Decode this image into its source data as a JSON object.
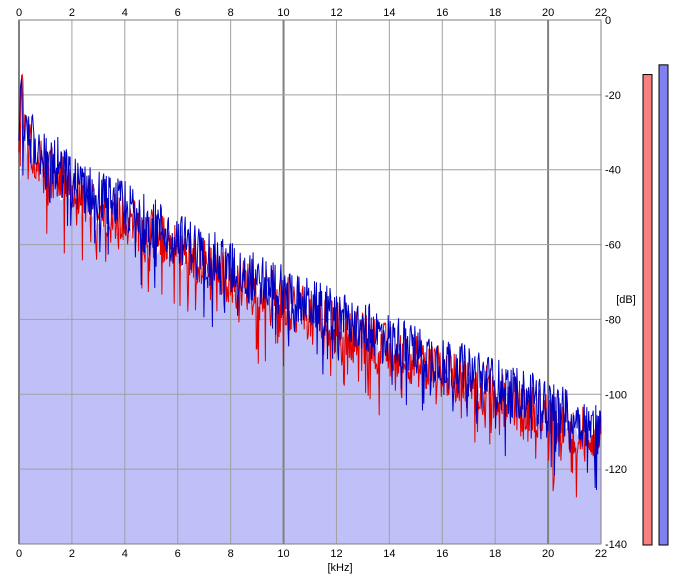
{
  "chart_data": {
    "type": "area",
    "xlabel": "[kHz]",
    "ylabel": "[dB]",
    "xlim": [
      0,
      22
    ],
    "ylim": [
      -140,
      0
    ],
    "x_ticks": [
      0,
      2,
      4,
      6,
      8,
      10,
      12,
      14,
      16,
      18,
      20,
      22
    ],
    "x_tick_labels": [
      "0",
      "2",
      "4",
      "6",
      "8",
      "10",
      "12",
      "14",
      "16",
      "18",
      "20",
      "22"
    ],
    "y_ticks": [
      0,
      -20,
      -40,
      -60,
      -80,
      -100,
      -120,
      -140
    ],
    "y_tick_labels": [
      "0",
      "-20",
      "-40",
      "-60",
      "-80",
      "-100",
      "-120",
      "-140"
    ],
    "grid": true,
    "colors": {
      "fill": "#c0c0f8",
      "left_channel": "#e00000",
      "right_channel": "#0000c0",
      "grid": "#a0a0a0",
      "left_meter": "#f88080",
      "right_meter": "#8080f0"
    },
    "envelope": {
      "x": [
        0,
        0.1,
        0.2,
        0.5,
        1,
        1.5,
        2,
        3,
        4,
        5,
        6,
        7,
        8,
        9,
        10,
        11,
        12,
        13,
        14,
        15,
        16,
        17,
        18,
        19,
        20,
        21,
        22
      ],
      "y": [
        -45,
        -38,
        -33,
        -38,
        -43,
        -46,
        -49,
        -53,
        -56,
        -60,
        -64,
        -68,
        -71,
        -74,
        -77,
        -80,
        -83,
        -86,
        -89,
        -92,
        -95,
        -98,
        -101,
        -104,
        -107,
        -110,
        -113
      ]
    },
    "series": [
      {
        "color": "#e00000",
        "x": [
          0,
          0.1,
          0.2,
          0.5,
          1,
          1.5,
          2,
          3,
          4,
          5,
          6,
          7,
          8,
          9,
          10,
          11,
          12,
          13,
          14,
          15,
          16,
          17,
          18,
          19,
          20,
          21,
          22
        ],
        "y": [
          -30,
          -18,
          -28,
          -34,
          -40,
          -42,
          -46,
          -50,
          -53,
          -57,
          -61,
          -65,
          -69,
          -72,
          -75,
          -79,
          -82,
          -85,
          -88,
          -91,
          -94,
          -97,
          -100,
          -103,
          -106,
          -109,
          -112
        ]
      },
      {
        "color": "#0000c0",
        "x": [
          0,
          0.1,
          0.2,
          0.5,
          1,
          1.5,
          2,
          3,
          4,
          5,
          6,
          7,
          8,
          9,
          10,
          11,
          12,
          13,
          14,
          15,
          16,
          17,
          18,
          19,
          20,
          21,
          22
        ],
        "y": [
          -28,
          -22,
          -30,
          -32,
          -37,
          -38,
          -43,
          -47,
          -50,
          -54,
          -58,
          -62,
          -66,
          -69,
          -72,
          -76,
          -79,
          -82,
          -85,
          -88,
          -91,
          -94,
          -97,
          -100,
          -103,
          -106,
          -110
        ]
      }
    ]
  },
  "level_meters": [
    {
      "channel": "left",
      "color": "#f88080",
      "level": 0.97
    },
    {
      "channel": "right",
      "color": "#8080f0",
      "level": 0.99
    }
  ]
}
